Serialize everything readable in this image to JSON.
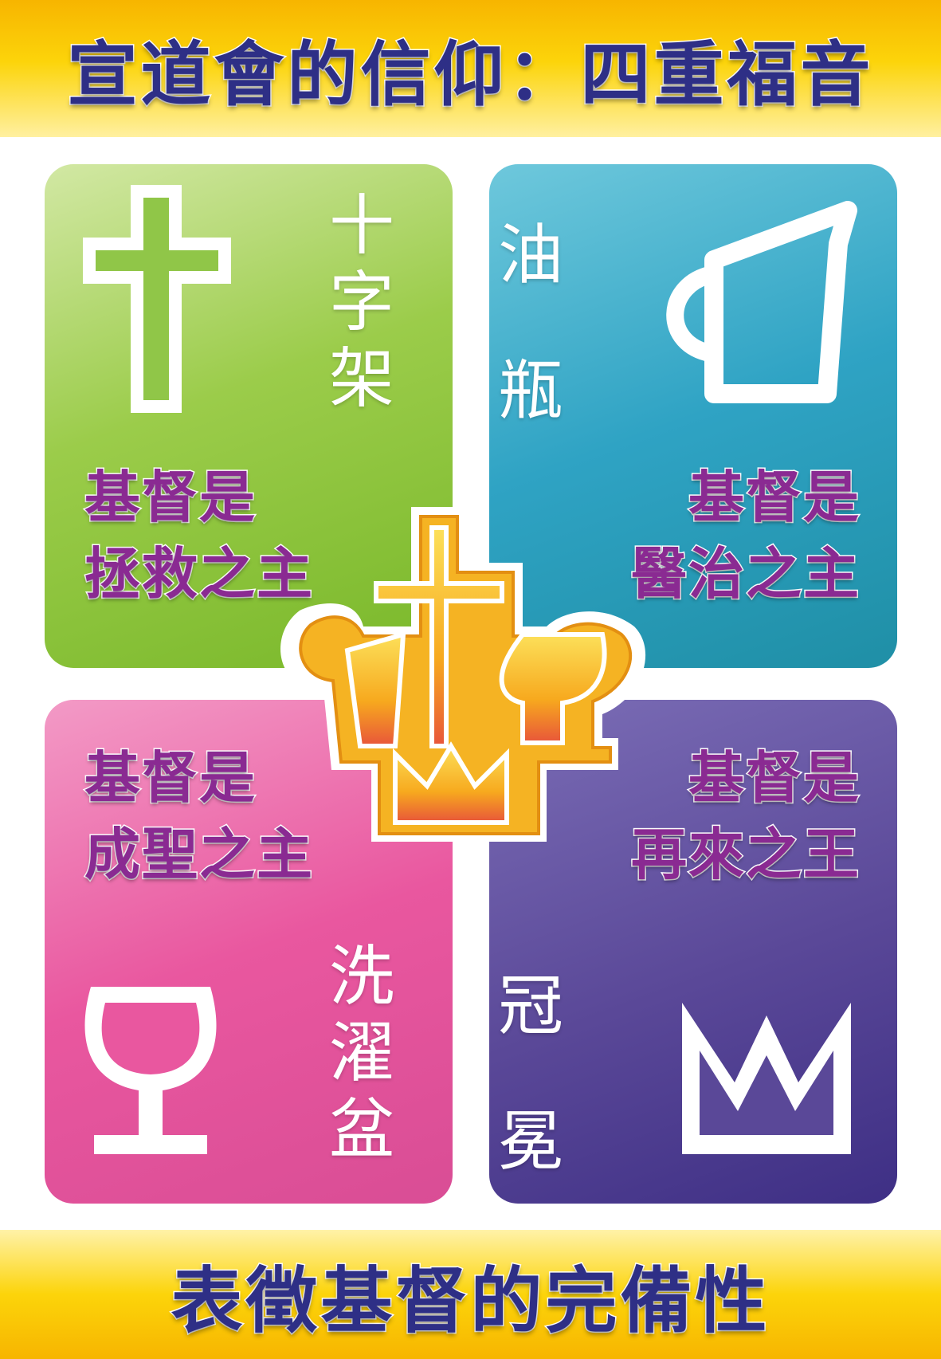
{
  "header": {
    "title": "宣道會的信仰：四重福音"
  },
  "footer": {
    "caption": "表徵基督的完備性"
  },
  "quadrants": [
    {
      "symbol_chars": [
        "十",
        "字",
        "架"
      ],
      "lord_lines": [
        "基督是",
        "拯救之主"
      ],
      "icon": "cross-icon",
      "color": "#8cc63f"
    },
    {
      "symbol_chars": [
        "油",
        "瓶"
      ],
      "lord_lines": [
        "基督是",
        "醫治之主"
      ],
      "icon": "oil-jar-icon",
      "color": "#2fa3c4"
    },
    {
      "symbol_chars": [
        "洗",
        "濯",
        "盆"
      ],
      "lord_lines": [
        "基督是",
        "成聖之主"
      ],
      "icon": "laver-cup-icon",
      "color": "#e9579f"
    },
    {
      "symbol_chars": [
        "冠",
        "冕"
      ],
      "lord_lines": [
        "基督是",
        "再來之王"
      ],
      "icon": "crown-icon",
      "color": "#5a4898"
    }
  ],
  "center": {
    "icon": "cma-logo-icon",
    "color": "#f7b500"
  }
}
